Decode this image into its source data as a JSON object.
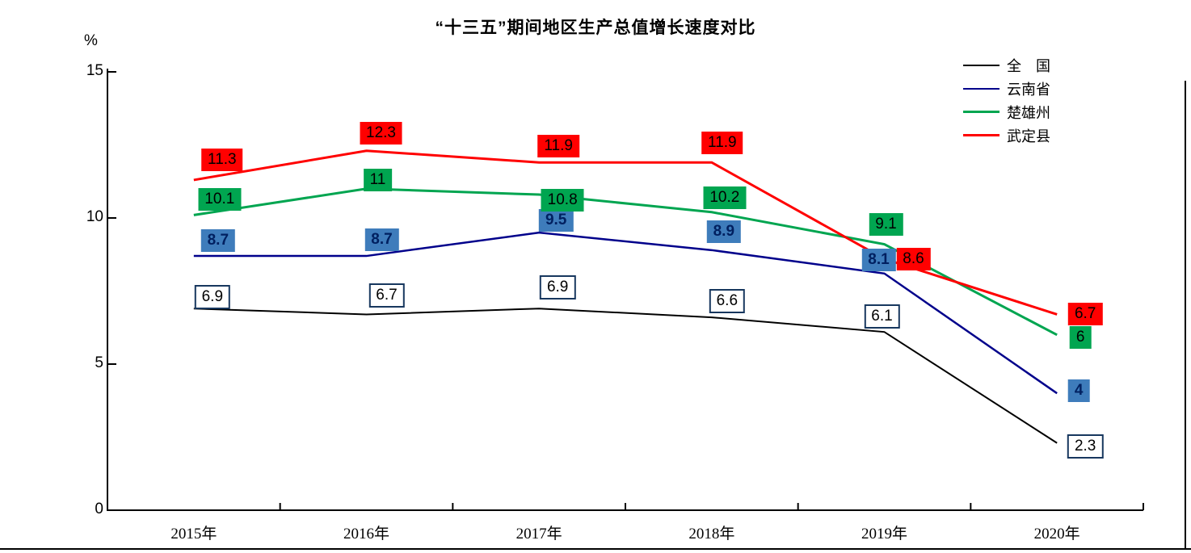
{
  "chart_data": {
    "type": "line",
    "title": "“十三五”期间地区生产总值增长速度对比",
    "unit": "%",
    "categories": [
      "2015年",
      "2016年",
      "2017年",
      "2018年",
      "2019年",
      "2020年"
    ],
    "series": [
      {
        "name": "全　国",
        "line_color": "#000000",
        "line_width": 2,
        "label_style": "outline",
        "values": [
          6.9,
          6.7,
          6.9,
          6.6,
          6.1,
          2.3
        ],
        "label_offsets": [
          [
            23,
            -14
          ],
          [
            25,
            -23
          ],
          [
            23,
            -26
          ],
          [
            19,
            -20
          ],
          [
            -3,
            -19
          ],
          [
            35,
            4
          ]
        ]
      },
      {
        "name": "云南省",
        "line_color": "#00008B",
        "line_width": 2.5,
        "label_style": "blue",
        "values": [
          8.7,
          8.7,
          9.5,
          8.9,
          8.1,
          4
        ],
        "label_offsets": [
          [
            30,
            -19
          ],
          [
            19,
            -20
          ],
          [
            21,
            -15
          ],
          [
            15,
            -23
          ],
          [
            -7,
            -17
          ],
          [
            27,
            -3
          ]
        ]
      },
      {
        "name": "楚雄州",
        "line_color": "#00A550",
        "line_width": 3,
        "label_style": "green",
        "values": [
          10.1,
          11,
          10.8,
          10.2,
          9.1,
          6
        ],
        "label_offsets": [
          [
            32,
            -19
          ],
          [
            14,
            -11
          ],
          [
            29,
            7
          ],
          [
            16,
            -18
          ],
          [
            2,
            -25
          ],
          [
            29,
            3
          ]
        ]
      },
      {
        "name": "武定县",
        "line_color": "#FF0000",
        "line_width": 3,
        "label_style": "red",
        "values": [
          11.3,
          12.3,
          11.9,
          11.9,
          8.6,
          6.7
        ],
        "label_offsets": [
          [
            35,
            -25
          ],
          [
            18,
            -22
          ],
          [
            24,
            -20
          ],
          [
            13,
            -24
          ],
          [
            36,
            0
          ],
          [
            35,
            0
          ]
        ]
      }
    ],
    "ylim": [
      0,
      15
    ],
    "yticks": [
      0,
      5,
      10,
      15
    ],
    "grid": false,
    "legend_position": "top-right",
    "label_box_colors": {
      "outline_border": "#17375E",
      "blue_fill": "#3E7CBB",
      "blue_text": "#002060",
      "green_fill": "#00A550",
      "red_fill": "#FF0000"
    }
  }
}
